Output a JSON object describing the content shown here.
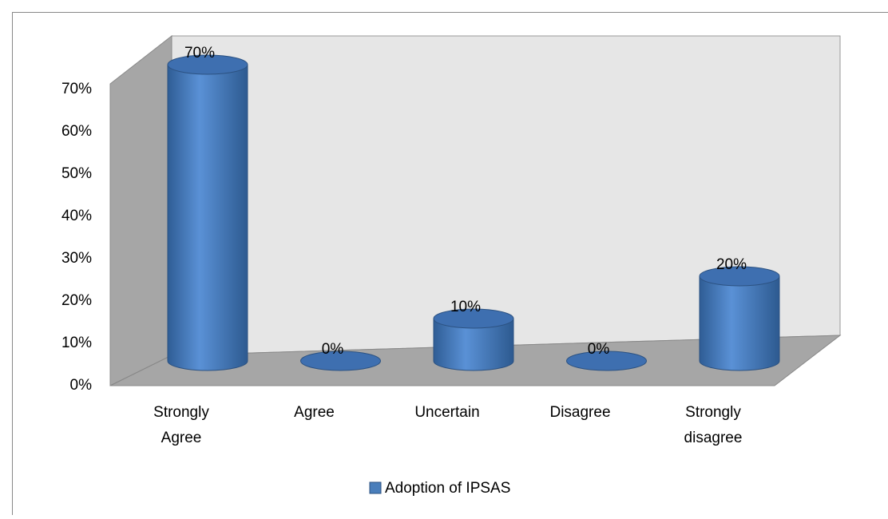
{
  "chart_data": {
    "type": "bar3d",
    "categories": [
      "Strongly Agree",
      "Agree",
      "Uncertain",
      "Disagree",
      "Strongly disagree"
    ],
    "series": [
      {
        "name": "Adoption of IPSAS",
        "color": "#4a7ebb",
        "values": [
          70,
          0,
          10,
          0,
          20
        ],
        "value_labels": [
          "70%",
          "0%",
          "10%",
          "0%",
          "20%"
        ]
      }
    ],
    "ylim": [
      0,
      70
    ],
    "yticks": [
      {
        "value": 0,
        "label": "0%"
      },
      {
        "value": 10,
        "label": "10%"
      },
      {
        "value": 20,
        "label": "20%"
      },
      {
        "value": 30,
        "label": "30%"
      },
      {
        "value": 40,
        "label": "40%"
      },
      {
        "value": 50,
        "label": "50%"
      },
      {
        "value": 60,
        "label": "60%"
      },
      {
        "value": 70,
        "label": "70%"
      }
    ],
    "legend": "bottom"
  }
}
